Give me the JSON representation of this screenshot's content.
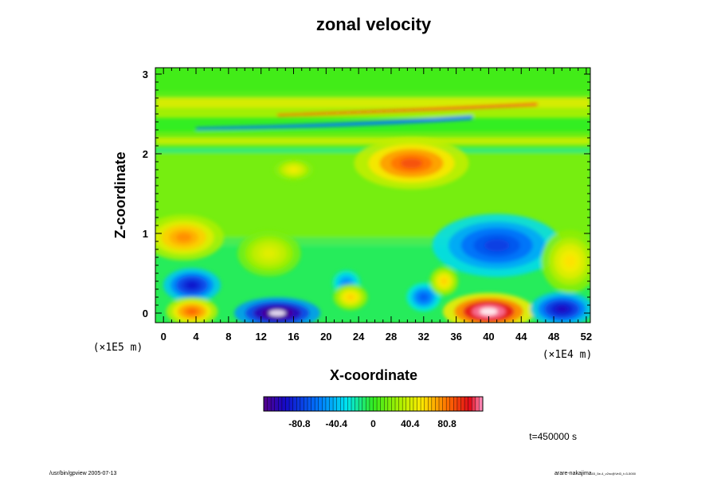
{
  "chart_data": {
    "type": "heatmap",
    "title": "zonal velocity",
    "xlabel": "X-coordinate",
    "ylabel": "Z-coordinate",
    "x_ticks": [
      "0",
      "4",
      "8",
      "12",
      "16",
      "20",
      "24",
      "28",
      "32",
      "36",
      "40",
      "44",
      "48",
      "52"
    ],
    "y_ticks": [
      "0",
      "1",
      "2",
      "3"
    ],
    "xlim": [
      -1,
      52.5
    ],
    "ylim": [
      -0.12,
      3.08
    ],
    "x_scale_note": "(×1E4 m)",
    "y_scale_note": "(×1E5 m)",
    "colorbar": {
      "range": [
        -120,
        120
      ],
      "tick_labels": [
        "-80.8",
        "-40.4",
        "0",
        "40.4",
        "80.8"
      ],
      "tick_values": [
        -80.8,
        -40.4,
        0,
        40.4,
        80.8
      ]
    },
    "time_label": "t=450000 s",
    "features": [
      {
        "x": 14,
        "z": 0.0,
        "value": -130
      },
      {
        "x": 40,
        "z": 0.02,
        "value": 130
      },
      {
        "x": 3.5,
        "z": 0.35,
        "value": -95
      },
      {
        "x": 49,
        "z": 0.05,
        "value": -100
      },
      {
        "x": 3.5,
        "z": 0.02,
        "value": 85
      },
      {
        "x": 2.5,
        "z": 0.95,
        "value": 75
      },
      {
        "x": 30.5,
        "z": 1.88,
        "value": 90
      },
      {
        "x": 41,
        "z": 0.85,
        "value": -80
      },
      {
        "x": 32,
        "z": 0.2,
        "value": -70
      },
      {
        "x": 22.5,
        "z": 0.38,
        "value": -55
      },
      {
        "x": 23,
        "z": 0.2,
        "value": 60
      },
      {
        "x": 34.5,
        "z": 0.4,
        "value": 60
      },
      {
        "x": 50,
        "z": 0.65,
        "value": 55
      },
      {
        "x": 16,
        "z": 1.8,
        "value": 50
      },
      {
        "x": 13,
        "z": 0.75,
        "value": 45
      }
    ]
  },
  "footer": {
    "left": "/usr/bin/gpview 2005-07-13",
    "right_main": "arare-nakajima",
    "right_small": "03_5e-4_v2nc@Vel3_t=3-5000"
  }
}
